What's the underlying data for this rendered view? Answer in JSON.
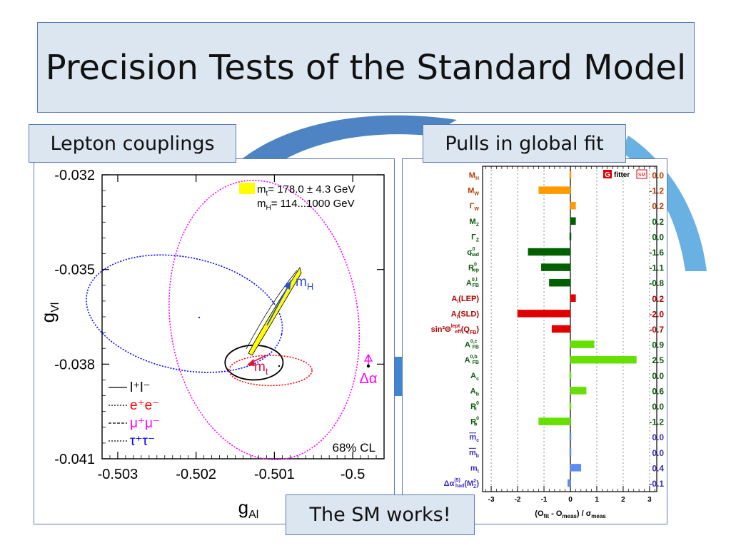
{
  "slide": {
    "title": "Precision Tests of the Standard Model",
    "left_label": "Lepton couplings",
    "right_label": "Pulls in global fit",
    "bottom_label": "The SM works!"
  },
  "chart_data": [
    {
      "type": "contour",
      "xlabel": "g",
      "xlabel_sub": "Al",
      "ylabel": "g",
      "ylabel_sub": "Vl",
      "xlim": [
        -0.5032,
        -0.4996
      ],
      "ylim": [
        -0.041,
        -0.032
      ],
      "x_ticks": [
        "-0.503",
        "-0.502",
        "-0.501",
        "-0.5"
      ],
      "y_ticks": [
        "-0.032",
        "-0.035",
        "-0.038",
        "-0.041"
      ],
      "legend_top": {
        "line1_pre": "m",
        "line1_sub": "t",
        "line1_post": "= 178.0 ± 4.3 GeV",
        "line2_pre": "m",
        "line2_sub": "H",
        "line2_post": "= 114...1000 GeV"
      },
      "legend_bottom": [
        {
          "label": "l⁺l⁻",
          "color": "#000000",
          "style": "solid"
        },
        {
          "label": "e⁺e⁻",
          "color": "#ff0000",
          "style": "dotted"
        },
        {
          "label": "μ⁺μ⁻",
          "color": "#ff00ff",
          "style": "dotted"
        },
        {
          "label": "τ⁺τ⁻",
          "color": "#0000ff",
          "style": "dotted"
        }
      ],
      "cl_label": "68% CL",
      "annotations": {
        "mH": "m",
        "mH_sub": "H",
        "mt": "m",
        "mt_sub": "t",
        "dalpha": "Δα"
      },
      "ellipses": [
        {
          "name": "l⁺l⁻",
          "cx": -0.50126,
          "cy": -0.03795,
          "rx": 0.00037,
          "ry": 0.00055,
          "color": "#000000",
          "style": "solid"
        },
        {
          "name": "e⁺e⁻",
          "cx": -0.50105,
          "cy": -0.0382,
          "rx": 0.00053,
          "ry": 0.00048,
          "color": "#ff0000",
          "style": "dotted"
        },
        {
          "name": "μ⁺μ⁻",
          "cx": -0.50113,
          "cy": -0.0366,
          "rx": 0.0012,
          "ry": 0.00445,
          "color": "#ff00ff",
          "style": "dotted"
        },
        {
          "name": "τ⁺τ⁻",
          "cx": -0.50215,
          "cy": -0.0364,
          "rx": 0.00127,
          "ry": 0.00178,
          "color": "#0000ff",
          "style": "dotted"
        }
      ],
      "colors": {
        "band": "#ffff00",
        "mH_arrow": "#2b4fd6",
        "mt_arrow": "#e0103a",
        "dalpha": "#ff00ff"
      }
    },
    {
      "type": "bar",
      "orientation": "horizontal",
      "title_logo_letter": "G",
      "title_logo_text": "fitter",
      "title_logo_sub": "SM",
      "xlabel": "(O_fit - O_meas) / σ_meas",
      "xlim": [
        -3.3,
        3.3
      ],
      "x_ticks": [
        "-3",
        "-2",
        "-1",
        "0",
        "1",
        "2",
        "3"
      ],
      "categories": [
        "MH",
        "MW",
        "ΓW",
        "MZ",
        "ΓZ",
        "σ0had",
        "R0lep",
        "A0,lFB",
        "Al(LEP)",
        "Al(SLD)",
        "sin2Θlepteff(QFB)",
        "A0,cFB",
        "A0,bFB",
        "Ac",
        "Ab",
        "R0c",
        "R0b",
        "mc",
        "mb",
        "mt",
        "Δα(5)had(M2Z)"
      ],
      "label_parts": [
        {
          "m": "M",
          "sub": "H"
        },
        {
          "m": "M",
          "sub": "W"
        },
        {
          "m": "Γ",
          "sub": "W"
        },
        {
          "m": "M",
          "sub": "Z"
        },
        {
          "m": "Γ",
          "sub": "Z"
        },
        {
          "m": "σ",
          "sub": "had",
          "sup": "0"
        },
        {
          "m": "R",
          "sub": "lep",
          "sup": "0"
        },
        {
          "m": "A",
          "sub": "FB",
          "sup": "0,l"
        },
        {
          "m": "A",
          "sub": "l",
          "post": "(LEP)"
        },
        {
          "m": "A",
          "sub": "l",
          "post": "(SLD)"
        },
        {
          "m": "sin²Θ",
          "sub": "eff",
          "sup": "lept",
          "post": "(Q",
          "post_sub": "FB",
          "post2": ")"
        },
        {
          "m": "A",
          "sub": "FB",
          "sup": "0,c"
        },
        {
          "m": "A",
          "sub": "FB",
          "sup": "0,b"
        },
        {
          "m": "A",
          "sub": "c"
        },
        {
          "m": "A",
          "sub": "b"
        },
        {
          "m": "R",
          "sub": "c",
          "sup": "0"
        },
        {
          "m": "R",
          "sub": "b",
          "sup": "0"
        },
        {
          "m": "m",
          "sub": "c",
          "bar": true
        },
        {
          "m": "m",
          "sub": "b",
          "bar": true
        },
        {
          "m": "m",
          "sub": "t"
        },
        {
          "m": "Δα",
          "sub": "had",
          "sup": "(5)",
          "post": "(M",
          "post_sup": "2",
          "post_sub": "Z",
          "post2": ")"
        }
      ],
      "values": [
        0.0,
        -1.2,
        0.2,
        0.2,
        0.0,
        -1.6,
        -1.1,
        -0.8,
        0.2,
        -2.0,
        -0.7,
        0.9,
        2.5,
        0.0,
        0.6,
        0.0,
        -1.2,
        0.0,
        0.0,
        0.4,
        -0.1
      ],
      "value_labels": [
        "0.0",
        "-1.2",
        "0.2",
        "0.2",
        "0.0",
        "-1.6",
        "-1.1",
        "-0.8",
        "0.2",
        "-2.0",
        "-0.7",
        "0.9",
        "2.5",
        "0.0",
        "0.6",
        "0.0",
        "-1.2",
        "0.0",
        "0.0",
        "0.4",
        "-0.1"
      ],
      "group_colors": {
        "W": "#ff9a00",
        "Z": "#006000",
        "LR": "#e00000",
        "HF": "#66e000",
        "Q": "#5b8ef0"
      },
      "bar_groups": [
        "W",
        "W",
        "W",
        "Z",
        "Z",
        "Z",
        "Z",
        "Z",
        "LR",
        "LR",
        "LR",
        "HF",
        "HF",
        "HF",
        "HF",
        "HF",
        "HF",
        "Q",
        "Q",
        "Q",
        "Q"
      ],
      "label_colors": [
        "#b83a00",
        "#b83a00",
        "#b83a00",
        "#0a5a0a",
        "#0a5a0a",
        "#0a5a0a",
        "#0a5a0a",
        "#0a5a0a",
        "#b00000",
        "#b00000",
        "#b00000",
        "#0a5a0a",
        "#0a5a0a",
        "#0a5a0a",
        "#0a5a0a",
        "#0a5a0a",
        "#0a5a0a",
        "#3a2ac0",
        "#3a2ac0",
        "#3a2ac0",
        "#3a2ac0"
      ],
      "grid": true
    }
  ]
}
